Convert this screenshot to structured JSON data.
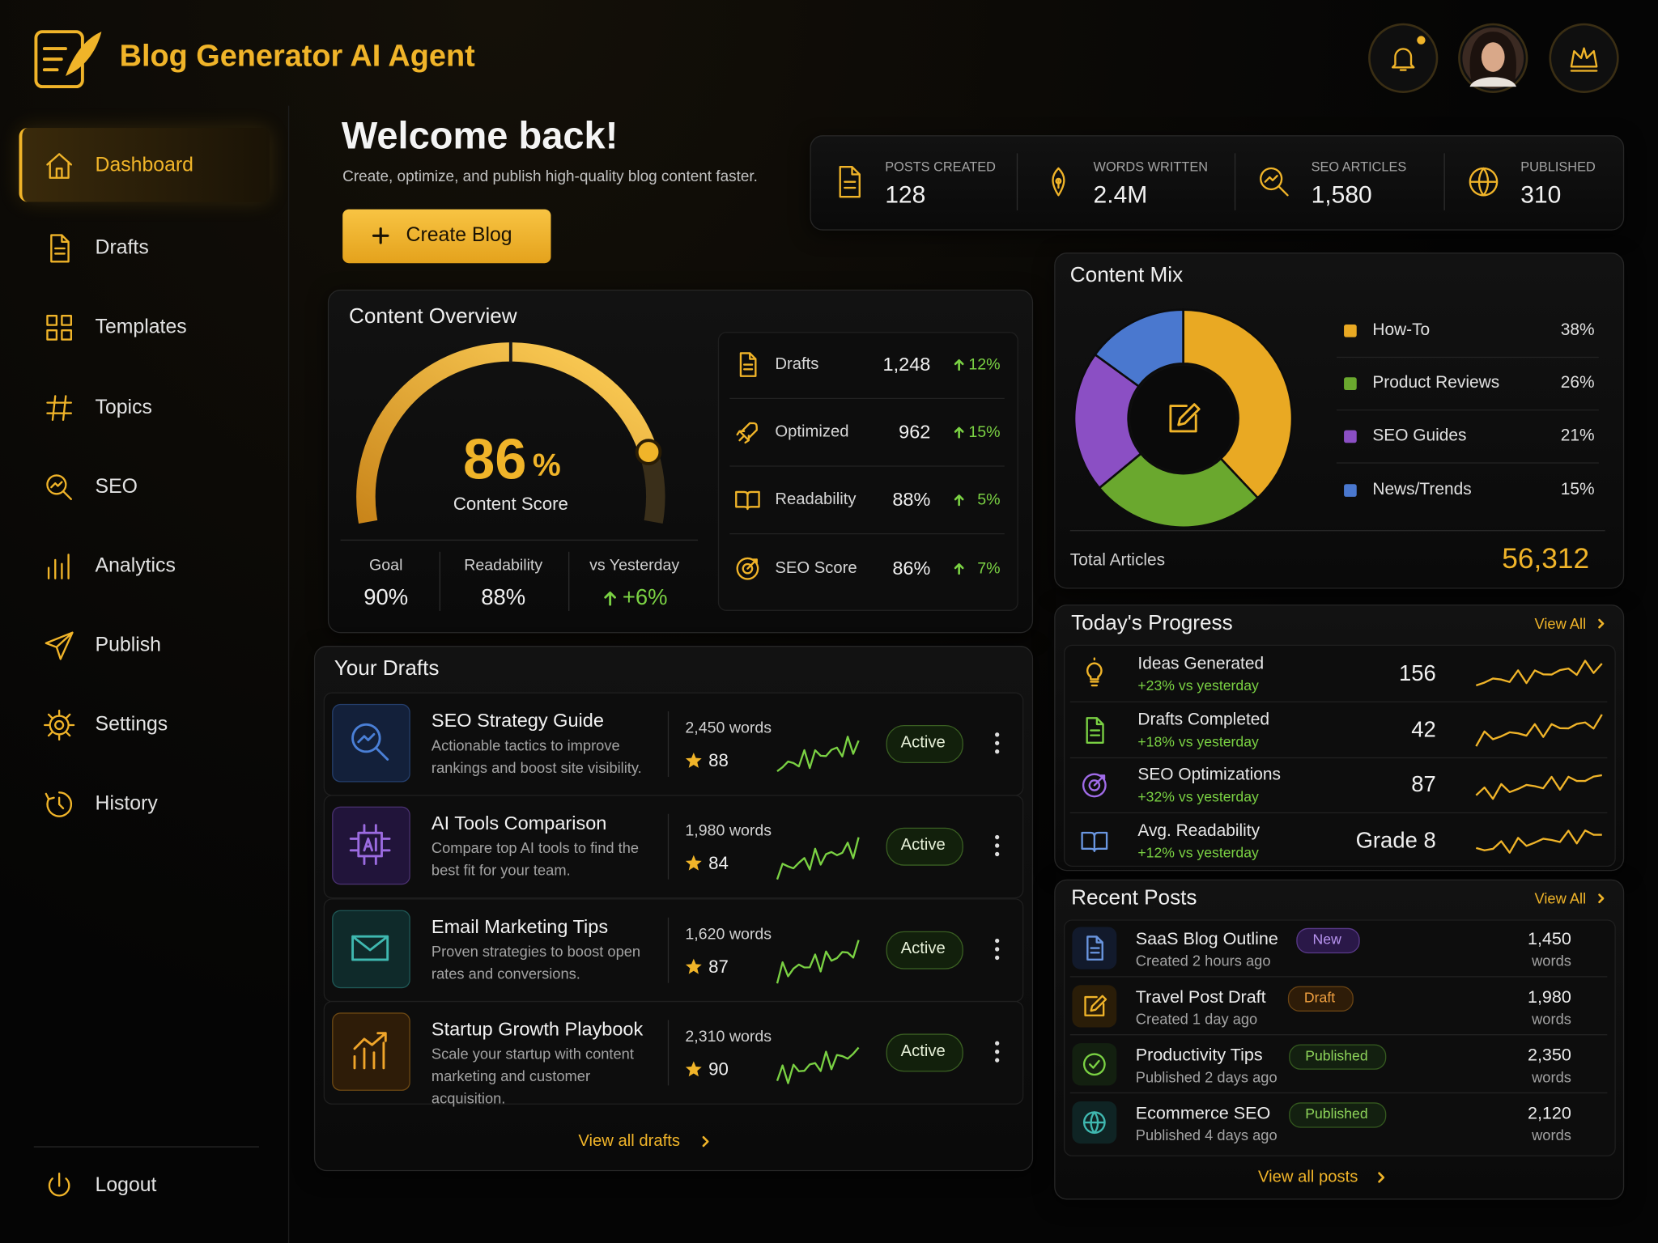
{
  "header": {
    "title": "Blog Generator AI Agent"
  },
  "nav": {
    "items": [
      "Dashboard",
      "Drafts",
      "Templates",
      "Topics",
      "SEO",
      "Analytics",
      "Publish",
      "Settings",
      "History"
    ],
    "logout": "Logout"
  },
  "welcome": {
    "title": "Welcome back!",
    "subtitle": "Create, optimize, and publish high-quality blog content faster.",
    "button": "Create Blog"
  },
  "stats": [
    {
      "label": "POSTS CREATED",
      "value": "128"
    },
    {
      "label": "WORDS WRITTEN",
      "value": "2.4M"
    },
    {
      "label": "SEO ARTICLES",
      "value": "1,580"
    },
    {
      "label": "PUBLISHED",
      "value": "310"
    }
  ],
  "overview": {
    "title": "Content Overview",
    "score": 86,
    "score_unit": "%",
    "score_label": "Content Score",
    "kpis": [
      {
        "label": "Goal",
        "value": "90%"
      },
      {
        "label": "Readability",
        "value": "88%"
      },
      {
        "label": "vs Yesterday",
        "value": "+6%"
      }
    ],
    "metrics": [
      {
        "label": "Drafts",
        "value": "1,248",
        "change": "12%"
      },
      {
        "label": "Optimized",
        "value": "962",
        "change": "15%"
      },
      {
        "label": "Readability",
        "value": "88%",
        "change": "5%"
      },
      {
        "label": "SEO Score",
        "value": "86%",
        "change": "7%"
      }
    ]
  },
  "drafts": {
    "title": "Your Drafts",
    "link": "View all drafts",
    "items": [
      {
        "title": "SEO Strategy Guide",
        "desc": "Actionable tactics to improve rankings and boost site visibility.",
        "words": "2,450 words",
        "rating": "88",
        "status": "Active"
      },
      {
        "title": "AI Tools Comparison",
        "desc": "Compare top AI tools to find the best fit for your team.",
        "words": "1,980 words",
        "rating": "84",
        "status": "Active"
      },
      {
        "title": "Email Marketing Tips",
        "desc": "Proven strategies to boost open rates and conversions.",
        "words": "1,620 words",
        "rating": "87",
        "status": "Active"
      },
      {
        "title": "Startup Growth Playbook",
        "desc": "Scale your startup with content marketing and customer acquisition.",
        "words": "2,310 words",
        "rating": "90",
        "status": "Active"
      }
    ]
  },
  "mix": {
    "title": "Content Mix",
    "items": [
      {
        "name": "How-To",
        "value": 38,
        "label": "38%",
        "color": "#e9a923"
      },
      {
        "name": "Product Reviews",
        "value": 26,
        "label": "26%",
        "color": "#6aa82e"
      },
      {
        "name": "SEO Guides",
        "value": 21,
        "label": "21%",
        "color": "#8b4fc4"
      },
      {
        "name": "News/Trends",
        "value": 15,
        "label": "15%",
        "color": "#4a78cf"
      }
    ],
    "total_label": "Total Articles",
    "total": "56,312"
  },
  "progress": {
    "title": "Today's Progress",
    "link": "View All",
    "items": [
      {
        "label": "Ideas Generated",
        "change": "+23% vs yesterday",
        "value": "156"
      },
      {
        "label": "Drafts Completed",
        "change": "+18% vs yesterday",
        "value": "42"
      },
      {
        "label": "SEO Optimizations",
        "change": "+32% vs yesterday",
        "value": "87"
      },
      {
        "label": "Avg. Readability",
        "change": "+12% vs yesterday",
        "value": "Grade 8"
      }
    ]
  },
  "recent": {
    "title": "Recent Posts",
    "link": "View All",
    "footer": "View all posts",
    "items": [
      {
        "title": "SaaS Blog Outline",
        "badge": "New",
        "meta": "Created 2 hours ago",
        "words": "1,450",
        "unit": "words"
      },
      {
        "title": "Travel Post Draft",
        "badge": "Draft",
        "meta": "Created 1 day ago",
        "words": "1,980",
        "unit": "words"
      },
      {
        "title": "Productivity Tips",
        "badge": "Published",
        "meta": "Published 2 days ago",
        "words": "2,350",
        "unit": "words"
      },
      {
        "title": "Ecommerce SEO",
        "badge": "Published",
        "meta": "Published 4 days ago",
        "words": "2,120",
        "unit": "words"
      }
    ]
  }
}
